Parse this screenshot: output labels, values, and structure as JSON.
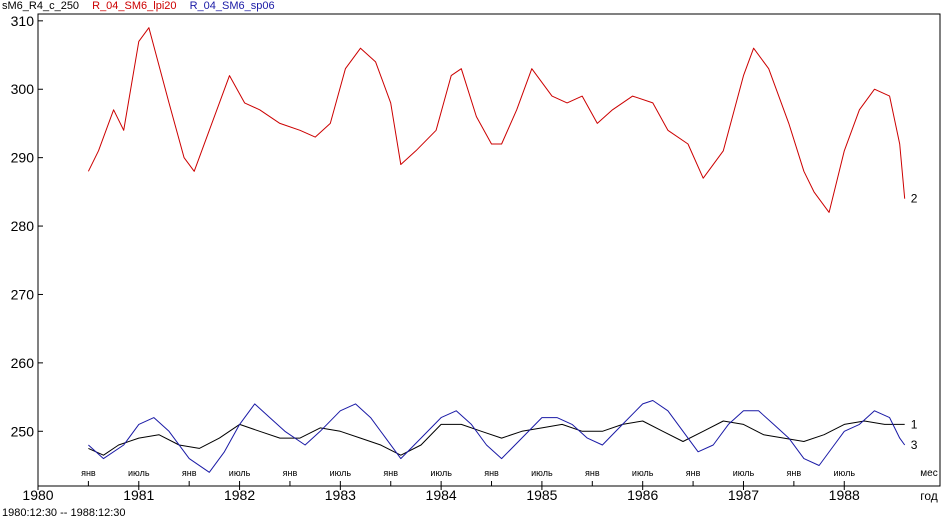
{
  "legend": [
    {
      "label": "sM6_R4_c_250",
      "color": "#000000"
    },
    {
      "label": "R_04_SM6_lpi20",
      "color": "#cc0000"
    },
    {
      "label": "R_04_SM6_sp06",
      "color": "#1a1aa6"
    }
  ],
  "date_range": "1980:12:30 -- 1988:12:30",
  "chart_data": {
    "type": "line",
    "ylim": [
      242,
      311
    ],
    "xlim": [
      1980.0,
      1988.95
    ],
    "y_ticks": [
      250,
      260,
      270,
      280,
      290,
      300,
      310
    ],
    "year_ticks": [
      {
        "x": 1980.0,
        "label": "1980"
      },
      {
        "x": 1981.0,
        "label": "1981"
      },
      {
        "x": 1982.0,
        "label": "1982"
      },
      {
        "x": 1983.0,
        "label": "1983"
      },
      {
        "x": 1984.0,
        "label": "1984"
      },
      {
        "x": 1985.0,
        "label": "1985"
      },
      {
        "x": 1986.0,
        "label": "1986"
      },
      {
        "x": 1987.0,
        "label": "1987"
      },
      {
        "x": 1988.0,
        "label": "1988"
      }
    ],
    "x_unit_label": "год",
    "month_unit_label": "мес",
    "month_ticks": [
      {
        "x": 1980.5,
        "label": "янв"
      },
      {
        "x": 1981.0,
        "label": "июль"
      },
      {
        "x": 1981.5,
        "label": "янв"
      },
      {
        "x": 1982.0,
        "label": "июль"
      },
      {
        "x": 1982.5,
        "label": "янв"
      },
      {
        "x": 1983.0,
        "label": "июль"
      },
      {
        "x": 1983.5,
        "label": "янв"
      },
      {
        "x": 1984.0,
        "label": "июль"
      },
      {
        "x": 1984.5,
        "label": "янв"
      },
      {
        "x": 1985.0,
        "label": "июль"
      },
      {
        "x": 1985.5,
        "label": "янв"
      },
      {
        "x": 1986.0,
        "label": "июль"
      },
      {
        "x": 1986.5,
        "label": "янв"
      },
      {
        "x": 1987.0,
        "label": "июль"
      },
      {
        "x": 1987.5,
        "label": "янв"
      },
      {
        "x": 1988.0,
        "label": "июль"
      }
    ],
    "series": [
      {
        "name": "R_04_SM6_lpi20",
        "end_label": "2",
        "color": "#cc0000",
        "x": [
          1980.5,
          1980.6,
          1980.75,
          1980.85,
          1981.0,
          1981.1,
          1981.3,
          1981.45,
          1981.55,
          1981.7,
          1981.9,
          1982.05,
          1982.2,
          1982.4,
          1982.6,
          1982.75,
          1982.9,
          1983.05,
          1983.2,
          1983.35,
          1983.5,
          1983.6,
          1983.75,
          1983.95,
          1984.1,
          1984.2,
          1984.35,
          1984.5,
          1984.6,
          1984.75,
          1984.9,
          1985.1,
          1985.25,
          1985.4,
          1985.55,
          1985.7,
          1985.9,
          1986.1,
          1986.25,
          1986.45,
          1986.6,
          1986.8,
          1987.0,
          1987.1,
          1987.25,
          1987.45,
          1987.6,
          1987.7,
          1987.85,
          1988.0,
          1988.15,
          1988.3,
          1988.45,
          1988.55,
          1988.6
        ],
        "y": [
          288,
          291,
          297,
          294,
          307,
          309,
          298,
          290,
          288,
          294,
          302,
          298,
          297,
          295,
          294,
          293,
          295,
          303,
          306,
          304,
          298,
          289,
          291,
          294,
          302,
          303,
          296,
          292,
          292,
          297,
          303,
          299,
          298,
          299,
          295,
          297,
          299,
          298,
          294,
          292,
          287,
          291,
          302,
          306,
          303,
          295,
          288,
          285,
          282,
          291,
          297,
          300,
          299,
          292,
          284
        ]
      },
      {
        "name": "sM6_R4_c_250",
        "end_label": "1",
        "color": "#000000",
        "x": [
          1980.5,
          1980.65,
          1980.8,
          1981.0,
          1981.2,
          1981.4,
          1981.6,
          1981.8,
          1982.0,
          1982.2,
          1982.4,
          1982.6,
          1982.8,
          1983.0,
          1983.2,
          1983.4,
          1983.6,
          1983.8,
          1984.0,
          1984.2,
          1984.4,
          1984.6,
          1984.8,
          1985.0,
          1985.2,
          1985.4,
          1985.6,
          1985.8,
          1986.0,
          1986.2,
          1986.4,
          1986.6,
          1986.8,
          1987.0,
          1987.2,
          1987.4,
          1987.6,
          1987.8,
          1988.0,
          1988.2,
          1988.4,
          1988.6
        ],
        "y": [
          247.5,
          246.5,
          248,
          249,
          249.5,
          248,
          247.5,
          249,
          251,
          250,
          249,
          249,
          250.5,
          250,
          249,
          248,
          246.5,
          248,
          251,
          251,
          250,
          249,
          250,
          250.5,
          251,
          250,
          250,
          251,
          251.5,
          250,
          248.5,
          250,
          251.5,
          251,
          249.5,
          249,
          248.5,
          249.5,
          251,
          251.5,
          251,
          251
        ]
      },
      {
        "name": "R_04_SM6_sp06",
        "end_label": "3",
        "color": "#1a1aa6",
        "x": [
          1980.5,
          1980.65,
          1980.85,
          1981.0,
          1981.15,
          1981.3,
          1981.5,
          1981.7,
          1981.85,
          1982.0,
          1982.15,
          1982.3,
          1982.45,
          1982.65,
          1982.8,
          1983.0,
          1983.15,
          1983.3,
          1983.45,
          1983.6,
          1983.8,
          1984.0,
          1984.15,
          1984.3,
          1984.45,
          1984.6,
          1984.8,
          1985.0,
          1985.15,
          1985.3,
          1985.45,
          1985.6,
          1985.8,
          1986.0,
          1986.1,
          1986.25,
          1986.4,
          1986.55,
          1986.7,
          1986.85,
          1987.0,
          1987.15,
          1987.3,
          1987.45,
          1987.6,
          1987.75,
          1987.9,
          1988.0,
          1988.15,
          1988.3,
          1988.45,
          1988.55,
          1988.6
        ],
        "y": [
          248,
          246,
          248,
          251,
          252,
          250,
          246,
          244,
          247,
          251,
          254,
          252,
          250,
          248,
          250,
          253,
          254,
          252,
          249,
          246,
          249,
          252,
          253,
          251,
          248,
          246,
          249,
          252,
          252,
          251,
          249,
          248,
          251,
          254,
          254.5,
          253,
          250,
          247,
          248,
          251,
          253,
          253,
          251,
          249,
          246,
          245,
          248,
          250,
          251,
          253,
          252,
          249,
          248
        ]
      }
    ]
  }
}
